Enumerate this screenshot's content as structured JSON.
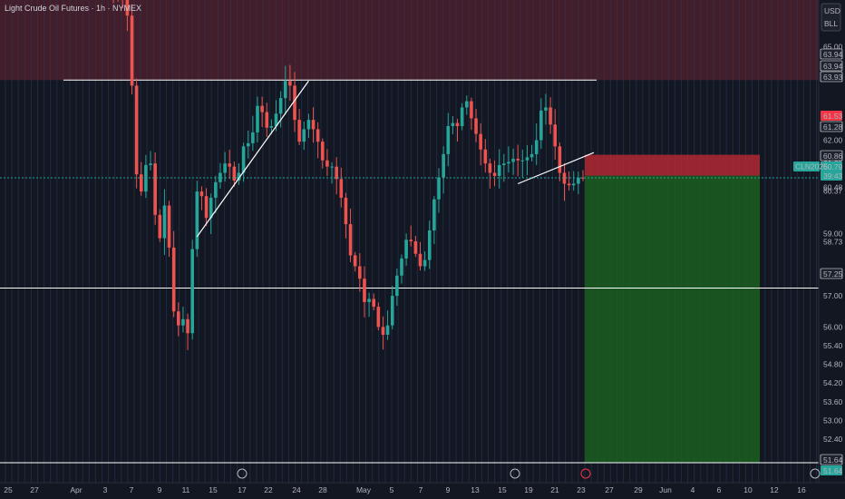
{
  "header": {
    "title": "Light Crude Oil Futures · 1h · NYMEX",
    "currency": "USD",
    "unit": "BLL"
  },
  "colors": {
    "background": "#131722",
    "up": "#26a69a",
    "down": "#ef5350",
    "supply_zone": "#f23645",
    "stop_box": "#b22833",
    "target_box": "#1b5e20",
    "price_label_dark": "#1e222d",
    "price_label_red": "#f23645",
    "price_label_green": "#26a69a"
  },
  "chart_data": {
    "type": "candlestick",
    "symbol": "CLN2025",
    "y_axis_ticks": [
      "65.00",
      "62.00",
      "61.25",
      "60.48",
      "60.37",
      "59.00",
      "58.73",
      "57.00",
      "56.00",
      "55.40",
      "54.80",
      "54.20",
      "53.60",
      "53.00",
      "52.40",
      "51.80"
    ],
    "ylim": [
      51.0,
      66.5
    ],
    "x_axis_ticks": [
      "25",
      "27",
      "Apr",
      "3",
      "7",
      "9",
      "11",
      "15",
      "17",
      "22",
      "24",
      "28",
      "May",
      "5",
      "7",
      "9",
      "13",
      "15",
      "19",
      "21",
      "23",
      "27",
      "29",
      "Jun",
      "4",
      "6",
      "10",
      "12",
      "16"
    ],
    "price_labels": [
      {
        "value": "63.94",
        "style": "dark"
      },
      {
        "value": "63.94",
        "style": "dark"
      },
      {
        "value": "63.93",
        "style": "dark"
      },
      {
        "value": "61.53",
        "style": "red"
      },
      {
        "value": "61.28",
        "style": "dark"
      },
      {
        "value": "60.86",
        "style": "dark"
      },
      {
        "value": "60.79",
        "style": "green"
      },
      {
        "value": "39:43",
        "style": "green"
      },
      {
        "value": "57.25",
        "style": "dark"
      },
      {
        "value": "51.64",
        "style": "dark"
      },
      {
        "value": "51.64",
        "style": "green"
      }
    ],
    "symbol_label": "CLN2025",
    "price_path": [
      [
        0,
        66.8
      ],
      [
        3,
        66.5
      ],
      [
        4,
        65.5
      ],
      [
        5,
        62.0
      ],
      [
        6,
        59.8
      ],
      [
        7,
        60.9
      ],
      [
        8,
        61.5
      ],
      [
        9,
        61.0
      ],
      [
        10,
        58.2
      ],
      [
        11,
        59.5
      ],
      [
        12,
        60.3
      ],
      [
        13,
        56.8
      ],
      [
        14,
        56.2
      ],
      [
        15,
        55.9
      ],
      [
        16,
        56.6
      ],
      [
        17,
        55.0
      ],
      [
        17.5,
        58.5
      ],
      [
        18,
        59.5
      ],
      [
        19,
        61.2
      ],
      [
        20,
        59.2
      ],
      [
        21,
        59.8
      ],
      [
        22,
        60.5
      ],
      [
        23,
        60.8
      ],
      [
        24,
        61.1
      ],
      [
        25,
        61.4
      ],
      [
        26,
        60.9
      ],
      [
        27,
        60.5
      ],
      [
        28,
        61.4
      ],
      [
        29,
        62.2
      ],
      [
        30,
        61.6
      ],
      [
        31,
        62.9
      ],
      [
        32,
        63.3
      ],
      [
        33,
        62.5
      ],
      [
        34,
        62.3
      ],
      [
        35,
        62.6
      ],
      [
        36,
        63.1
      ],
      [
        37,
        63.6
      ],
      [
        38,
        64.2
      ],
      [
        39,
        63.3
      ],
      [
        40,
        62.0
      ],
      [
        41,
        61.9
      ],
      [
        42,
        62.8
      ],
      [
        43,
        62.5
      ],
      [
        44,
        62.2
      ],
      [
        45,
        61.7
      ],
      [
        46,
        61.0
      ],
      [
        47,
        61.3
      ],
      [
        48,
        61.0
      ],
      [
        49,
        60.5
      ],
      [
        50,
        59.8
      ],
      [
        51,
        58.8
      ],
      [
        52,
        57.8
      ],
      [
        53,
        58.1
      ],
      [
        54,
        57.0
      ],
      [
        55,
        56.6
      ],
      [
        56,
        57.2
      ],
      [
        57,
        56.1
      ],
      [
        58,
        55.9
      ],
      [
        59,
        55.6
      ],
      [
        60,
        56.5
      ],
      [
        61,
        57.5
      ],
      [
        62,
        57.8
      ],
      [
        63,
        58.6
      ],
      [
        64,
        59.0
      ],
      [
        65,
        58.5
      ],
      [
        66,
        58.2
      ],
      [
        67,
        57.7
      ],
      [
        68,
        58.6
      ],
      [
        69,
        59.6
      ],
      [
        70,
        60.6
      ],
      [
        71,
        61.0
      ],
      [
        72,
        62.1
      ],
      [
        73,
        62.8
      ],
      [
        74,
        62.3
      ],
      [
        75,
        62.6
      ],
      [
        76,
        63.5
      ],
      [
        77,
        63.0
      ],
      [
        78,
        62.4
      ],
      [
        79,
        62.0
      ],
      [
        80,
        61.4
      ],
      [
        81,
        61.1
      ],
      [
        82,
        60.8
      ],
      [
        83,
        60.9
      ],
      [
        84,
        61.5
      ],
      [
        85,
        61.0
      ],
      [
        86,
        61.6
      ],
      [
        87,
        61.2
      ],
      [
        88,
        61.5
      ],
      [
        89,
        61.2
      ],
      [
        90,
        61.7
      ],
      [
        91,
        61.4
      ],
      [
        92,
        62.6
      ],
      [
        93,
        63.3
      ],
      [
        94,
        62.8
      ],
      [
        95,
        62.2
      ],
      [
        96,
        61.4
      ],
      [
        97,
        60.5
      ],
      [
        98,
        60.7
      ],
      [
        99,
        60.4
      ],
      [
        100,
        60.8
      ],
      [
        101,
        60.79
      ]
    ],
    "drawings": {
      "horizontal_lines": [
        63.93,
        57.25,
        51.64
      ],
      "supply_zone_bottom": 63.93,
      "trendlines": [
        {
          "from": [
            18,
            58.9
          ],
          "to": [
            42,
            63.9
          ]
        },
        {
          "from": [
            87,
            60.6
          ],
          "to": [
            101,
            61.6
          ]
        }
      ],
      "position": {
        "entry": 60.86,
        "stop": 61.53,
        "target": 51.64,
        "start_bar": 101,
        "end_bar": 131
      }
    }
  }
}
